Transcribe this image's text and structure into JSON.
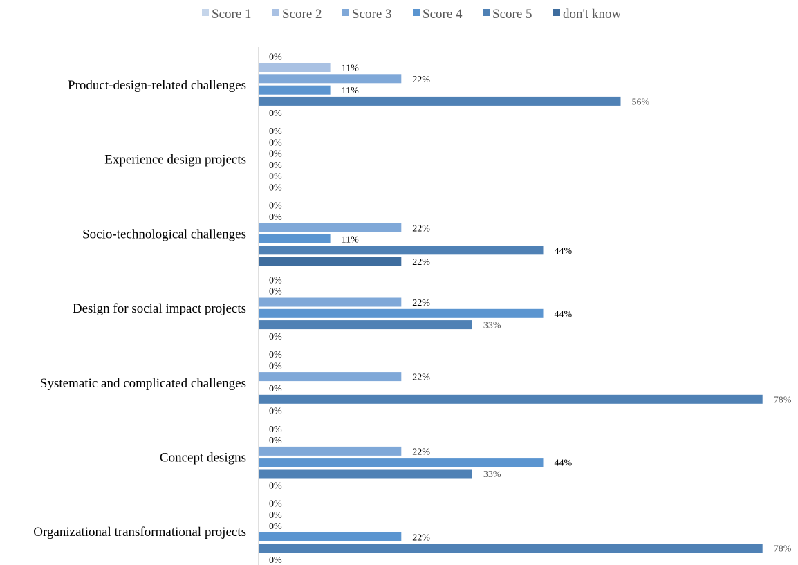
{
  "chart_data": {
    "type": "bar",
    "orientation": "horizontal",
    "categories": [
      "Product-design-related challenges",
      "Experience design projects",
      "Socio-technological challenges",
      "Design for social impact projects",
      "Systematic and complicated challenges",
      "Concept designs",
      "Organizational transformational projects"
    ],
    "series": [
      {
        "name": "Score 1",
        "color": "#c5d5ea",
        "values": [
          0,
          0,
          0,
          0,
          0,
          0,
          0
        ]
      },
      {
        "name": "Score 2",
        "color": "#a9c1e3",
        "values": [
          11,
          0,
          0,
          0,
          0,
          0,
          0
        ]
      },
      {
        "name": "Score 3",
        "color": "#7fa8d8",
        "values": [
          22,
          0,
          22,
          22,
          22,
          22,
          0
        ]
      },
      {
        "name": "Score 4",
        "color": "#5b95d0",
        "values": [
          11,
          0,
          11,
          44,
          0,
          44,
          22
        ]
      },
      {
        "name": "Score 5",
        "color": "#4f81b5",
        "values": [
          56,
          0,
          44,
          33,
          78,
          33,
          78
        ]
      },
      {
        "name": "don't know",
        "color": "#3e6d9e",
        "values": [
          0,
          0,
          22,
          0,
          0,
          0,
          0
        ]
      }
    ],
    "value_suffix": "%",
    "xlim": [
      0,
      78
    ],
    "legend_position": "top",
    "grid": false
  }
}
